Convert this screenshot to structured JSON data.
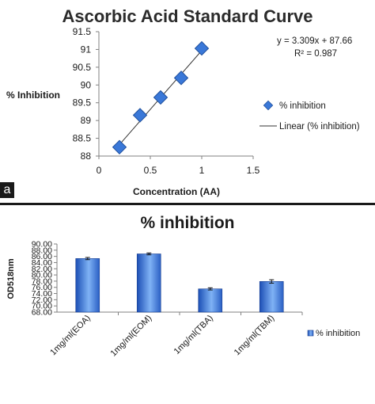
{
  "chart_data": [
    {
      "type": "scatter",
      "title": "Ascorbic Acid Standard Curve",
      "xlabel": "Concentration (AA)",
      "ylabel": "% Inhibition",
      "xlim": [
        0,
        1.5
      ],
      "ylim": [
        88,
        91.5
      ],
      "x_ticks": [
        "0",
        "0.5",
        "1",
        "1.5"
      ],
      "y_ticks": [
        "88",
        "88.5",
        "89",
        "89.5",
        "90",
        "90.5",
        "91",
        "91.5"
      ],
      "x": [
        0.2,
        0.4,
        0.6,
        0.8,
        1.0
      ],
      "y": [
        88.25,
        89.15,
        89.65,
        90.2,
        91.03
      ],
      "trendline": {
        "slope": 3.309,
        "intercept": 87.66
      },
      "equation": "y = 3.309x + 87.66",
      "r2_label": "R² = 0.987",
      "legend": {
        "position": "right",
        "marker_label": "% inhibition",
        "line_label": "Linear (% inhibition)"
      },
      "panel_label": "a",
      "colors": {
        "marker": "#3a78d8",
        "marker_edge": "#1f4f9c",
        "line": "#333333"
      },
      "grid": false
    },
    {
      "type": "bar",
      "title": "% inhibition",
      "ylabel": "OD518nm",
      "xlabel": "",
      "categories": [
        "1mg/ml(EOA)",
        "1mg/ml(EOM)",
        "1mg/ml(TBA)",
        "1mg/ml(TBM)"
      ],
      "series": [
        {
          "name": "% inhibition",
          "values": [
            85.3,
            86.8,
            75.5,
            77.9
          ],
          "errors": [
            0.35,
            0.3,
            0.35,
            0.55
          ]
        }
      ],
      "ylim": [
        68,
        90
      ],
      "y_ticks": [
        "68.00",
        "70.00",
        "72.00",
        "74.00",
        "76.00",
        "78.00",
        "80.00",
        "82.00",
        "84.00",
        "86.00",
        "88.00",
        "90.00"
      ],
      "legend": {
        "position": "right"
      },
      "colors": {
        "bar_dark": "#1c4fb5",
        "bar_light": "#7fb2f5",
        "edge": "#1a3f8f"
      },
      "grid": false
    }
  ]
}
